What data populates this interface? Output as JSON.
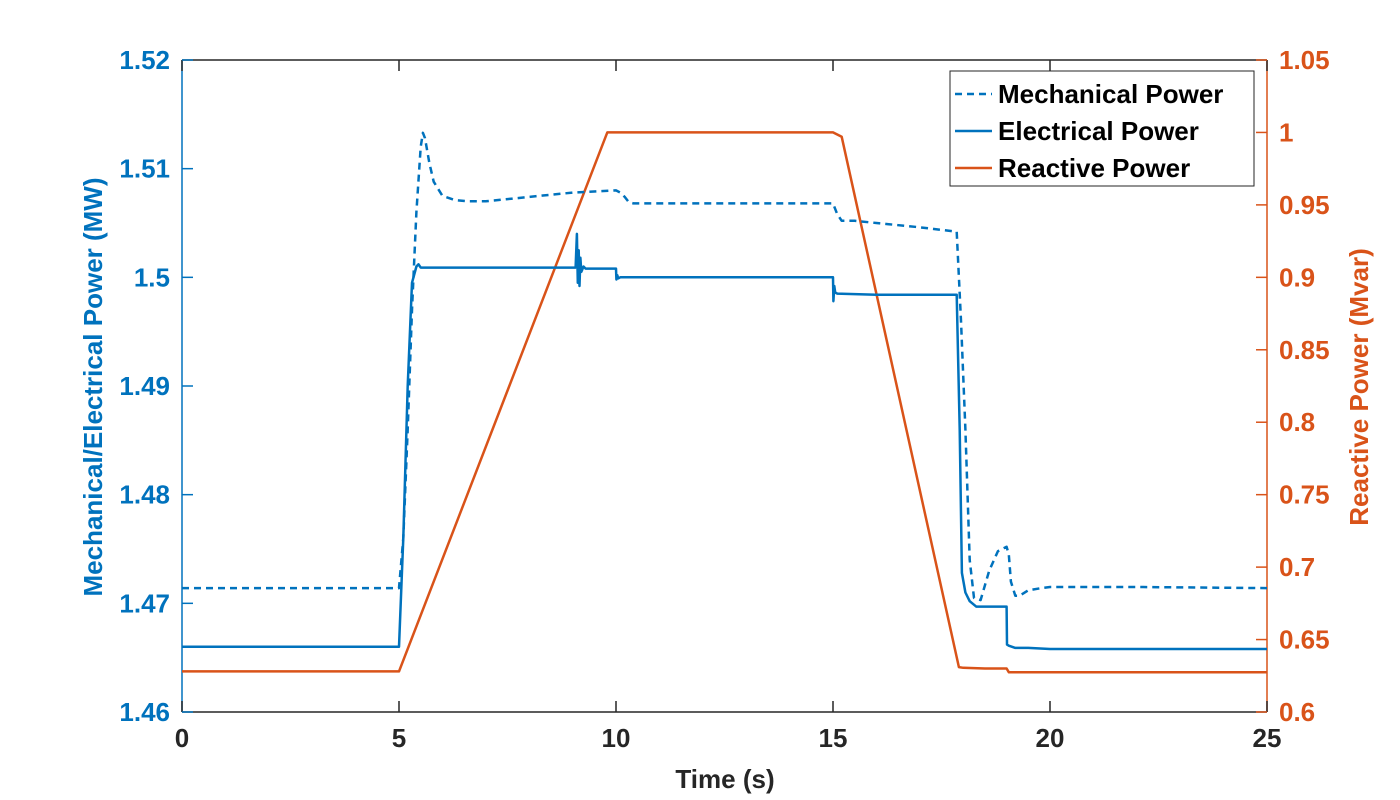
{
  "chart_data": {
    "type": "line",
    "title": "",
    "xlabel": "Time (s)",
    "ylabel_left": "Mechanical/Electrical Power (MW)",
    "ylabel_right": "Reactive Power (Mvar)",
    "xlim": [
      0,
      25
    ],
    "ylim_left": [
      1.46,
      1.52
    ],
    "ylim_right": [
      0.6,
      1.05
    ],
    "x_ticks": [
      0,
      5,
      10,
      15,
      20,
      25
    ],
    "x_tick_labels": [
      "0",
      "5",
      "10",
      "15",
      "20",
      "25"
    ],
    "y_left_ticks": [
      1.46,
      1.47,
      1.48,
      1.49,
      1.5,
      1.51,
      1.52
    ],
    "y_left_tick_labels": [
      "1.46",
      "1.47",
      "1.48",
      "1.49",
      "1.5",
      "1.51",
      "1.52"
    ],
    "y_right_ticks": [
      0.6,
      0.65,
      0.7,
      0.75,
      0.8,
      0.85,
      0.9,
      0.95,
      1.0,
      1.05
    ],
    "y_right_tick_labels": [
      "0.6",
      "0.65",
      "0.7",
      "0.75",
      "0.8",
      "0.85",
      "0.9",
      "0.95",
      "1",
      "1.05"
    ],
    "grid": false,
    "legend_position": "top-right",
    "colors": {
      "left_axis": "#0072BD",
      "right_axis": "#D95319",
      "axis_black": "#262626"
    },
    "series": [
      {
        "name": "Mechanical Power",
        "axis": "left",
        "style": "dashed",
        "color": "#0072BD",
        "x": [
          0,
          5.0,
          5.1,
          5.2,
          5.3,
          5.4,
          5.5,
          5.55,
          5.6,
          5.7,
          5.8,
          6.0,
          6.3,
          6.6,
          7.0,
          8.0,
          9.0,
          10.0,
          10.1,
          10.2,
          10.3,
          10.4,
          11.0,
          13.0,
          15.0,
          15.1,
          15.2,
          15.5,
          16.0,
          17.0,
          17.85,
          17.95,
          18.05,
          18.15,
          18.25,
          18.4,
          18.6,
          18.8,
          19.0,
          19.05,
          19.1,
          19.2,
          19.3,
          19.5,
          19.8,
          20.0,
          22.0,
          25.0
        ],
        "y": [
          1.4714,
          1.4714,
          1.476,
          1.486,
          1.497,
          1.506,
          1.512,
          1.5133,
          1.5128,
          1.5105,
          1.5088,
          1.5075,
          1.5071,
          1.507,
          1.507,
          1.5074,
          1.5078,
          1.508,
          1.5078,
          1.5074,
          1.5069,
          1.5068,
          1.5068,
          1.5068,
          1.5068,
          1.5058,
          1.5052,
          1.5052,
          1.505,
          1.5046,
          1.5042,
          1.496,
          1.486,
          1.474,
          1.4705,
          1.4703,
          1.473,
          1.4748,
          1.4752,
          1.4745,
          1.472,
          1.4707,
          1.4707,
          1.4712,
          1.4714,
          1.4715,
          1.4715,
          1.4714
        ]
      },
      {
        "name": "Electrical Power",
        "axis": "left",
        "style": "solid",
        "color": "#0072BD",
        "x": [
          0,
          5.0,
          5.1,
          5.2,
          5.3,
          5.4,
          5.45,
          5.5,
          6.0,
          8.0,
          9.0,
          9.07,
          9.1,
          9.12,
          9.14,
          9.16,
          9.18,
          9.2,
          9.25,
          9.3,
          10.0,
          10.01,
          10.03,
          10.05,
          10.1,
          11.0,
          13.0,
          15.0,
          15.01,
          15.03,
          15.05,
          15.1,
          16.0,
          17.0,
          17.85,
          17.92,
          17.97,
          18.05,
          18.15,
          18.3,
          18.6,
          19.0,
          19.01,
          19.05,
          19.2,
          19.5,
          20.0,
          22.0,
          25.0
        ],
        "y": [
          1.466,
          1.466,
          1.476,
          1.49,
          1.4995,
          1.501,
          1.5012,
          1.5009,
          1.5009,
          1.5009,
          1.5009,
          1.5009,
          1.504,
          1.4995,
          1.5025,
          1.4992,
          1.5018,
          1.5005,
          1.501,
          1.5008,
          1.5008,
          1.4998,
          1.5002,
          1.4999,
          1.5,
          1.5,
          1.5,
          1.5,
          1.4978,
          1.4992,
          1.4986,
          1.4985,
          1.4984,
          1.4984,
          1.4984,
          1.486,
          1.4728,
          1.471,
          1.4702,
          1.4697,
          1.4697,
          1.4697,
          1.4662,
          1.4661,
          1.4659,
          1.4659,
          1.4658,
          1.4658,
          1.4658
        ]
      },
      {
        "name": "Reactive Power",
        "axis": "right",
        "style": "solid",
        "color": "#D95319",
        "x": [
          0,
          5.0,
          9.8,
          10.0,
          15.0,
          15.2,
          17.9,
          18.0,
          18.5,
          19.0,
          19.05,
          19.5,
          25.0
        ],
        "y": [
          0.628,
          0.628,
          1.0,
          1.0,
          1.0,
          0.997,
          0.631,
          0.6305,
          0.63,
          0.63,
          0.6275,
          0.6275,
          0.6275
        ]
      }
    ]
  }
}
